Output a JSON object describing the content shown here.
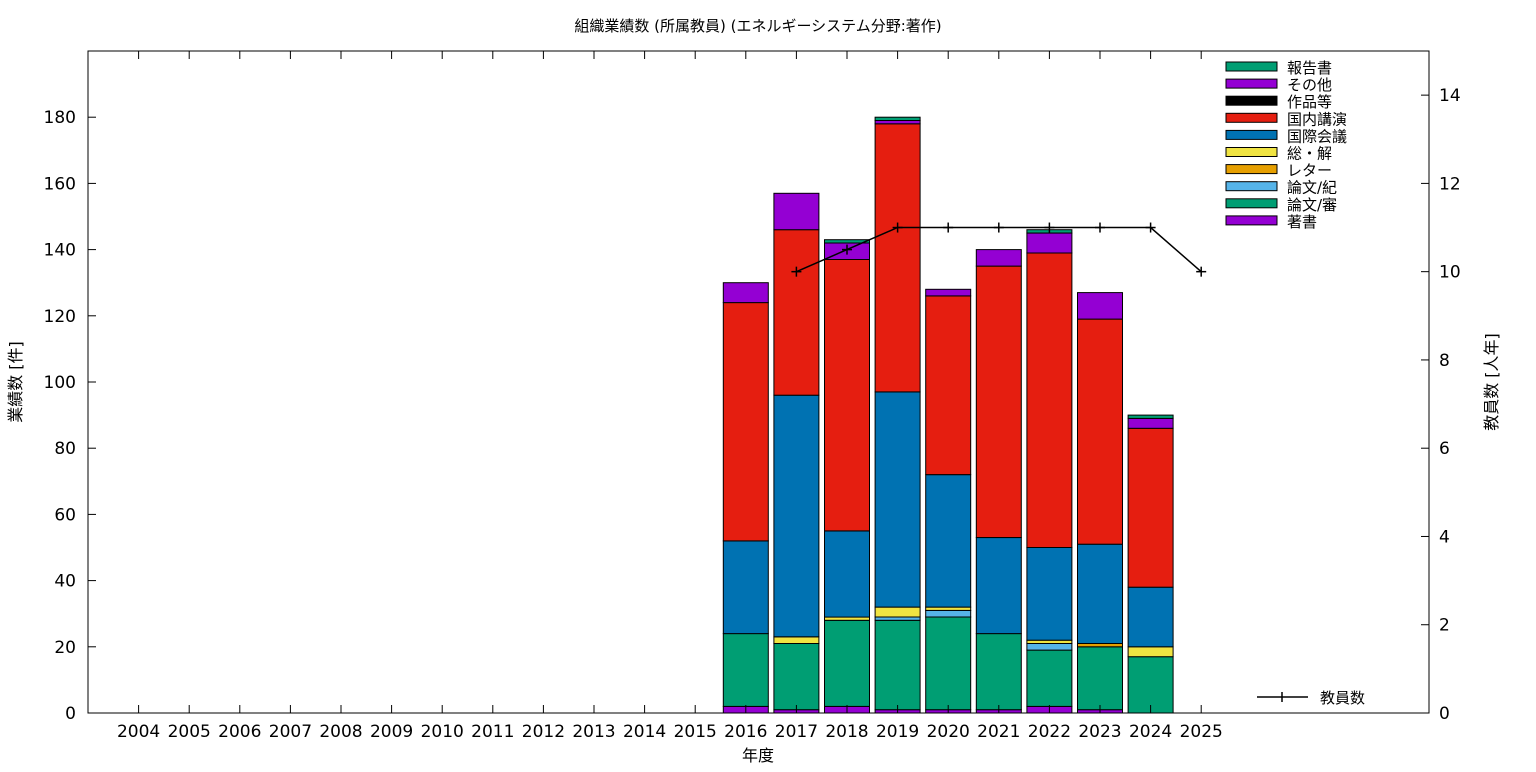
{
  "chart_data": {
    "type": "bar",
    "stacked": true,
    "title": "組織業績数 (所属教員) (エネルギーシステム分野:著作)",
    "xlabel": "年度",
    "ylabel": "業績数 [件]",
    "y2label": "教員数 [人年]",
    "categories": [
      "2004",
      "2005",
      "2006",
      "2007",
      "2008",
      "2009",
      "2010",
      "2011",
      "2012",
      "2013",
      "2014",
      "2015",
      "2016",
      "2017",
      "2018",
      "2019",
      "2020",
      "2021",
      "2022",
      "2023",
      "2024",
      "2025"
    ],
    "ylim": [
      0,
      200
    ],
    "yticks": [
      0,
      20,
      40,
      60,
      80,
      100,
      120,
      140,
      160,
      180
    ],
    "y2lim": [
      0,
      15
    ],
    "y2ticks": [
      0,
      2,
      4,
      6,
      8,
      10,
      12,
      14
    ],
    "grid": false,
    "legend_position": "top-right",
    "series": [
      {
        "name": "著書",
        "color": "#9400d3",
        "values": [
          0,
          0,
          0,
          0,
          0,
          0,
          0,
          0,
          0,
          0,
          0,
          0,
          2,
          1,
          2,
          1,
          1,
          1,
          2,
          1,
          0,
          0
        ]
      },
      {
        "name": "論文/審",
        "color": "#009e73",
        "values": [
          0,
          0,
          0,
          0,
          0,
          0,
          0,
          0,
          0,
          0,
          0,
          0,
          22,
          20,
          26,
          27,
          28,
          23,
          17,
          19,
          17,
          0
        ]
      },
      {
        "name": "論文/紀",
        "color": "#56b4e9",
        "values": [
          0,
          0,
          0,
          0,
          0,
          0,
          0,
          0,
          0,
          0,
          0,
          0,
          0,
          0,
          0,
          1,
          2,
          0,
          2,
          0,
          0,
          0
        ]
      },
      {
        "name": "レター",
        "color": "#e69f00",
        "values": [
          0,
          0,
          0,
          0,
          0,
          0,
          0,
          0,
          0,
          0,
          0,
          0,
          0,
          0,
          0,
          0,
          0,
          0,
          0,
          1,
          0,
          0
        ]
      },
      {
        "name": "総・解",
        "color": "#f0e442",
        "values": [
          0,
          0,
          0,
          0,
          0,
          0,
          0,
          0,
          0,
          0,
          0,
          0,
          0,
          2,
          1,
          3,
          1,
          0,
          1,
          0,
          3,
          0
        ]
      },
      {
        "name": "国際会議",
        "color": "#0072b2",
        "values": [
          0,
          0,
          0,
          0,
          0,
          0,
          0,
          0,
          0,
          0,
          0,
          0,
          28,
          73,
          26,
          65,
          40,
          29,
          28,
          30,
          18,
          0
        ]
      },
      {
        "name": "国内講演",
        "color": "#e51e10",
        "values": [
          0,
          0,
          0,
          0,
          0,
          0,
          0,
          0,
          0,
          0,
          0,
          0,
          72,
          50,
          82,
          81,
          54,
          82,
          89,
          68,
          48,
          0
        ]
      },
      {
        "name": "作品等",
        "color": "#000000",
        "values": [
          0,
          0,
          0,
          0,
          0,
          0,
          0,
          0,
          0,
          0,
          0,
          0,
          0,
          0,
          0,
          0,
          0,
          0,
          0,
          0,
          0,
          0
        ]
      },
      {
        "name": "その他",
        "color": "#9400d3",
        "values": [
          0,
          0,
          0,
          0,
          0,
          0,
          0,
          0,
          0,
          0,
          0,
          0,
          6,
          11,
          5,
          1,
          2,
          5,
          6,
          8,
          3,
          0
        ]
      },
      {
        "name": "報告書",
        "color": "#009e73",
        "values": [
          0,
          0,
          0,
          0,
          0,
          0,
          0,
          0,
          0,
          0,
          0,
          0,
          0,
          0,
          1,
          1,
          0,
          0,
          1,
          0,
          1,
          0
        ]
      }
    ],
    "line_series": {
      "name": "教員数",
      "axis": "y2",
      "color": "#000000",
      "x": [
        "2017",
        "2018",
        "2019",
        "2020",
        "2021",
        "2022",
        "2023",
        "2024",
        "2025"
      ],
      "values": [
        10,
        10.5,
        11,
        11,
        11,
        11,
        11,
        11,
        10
      ]
    }
  }
}
